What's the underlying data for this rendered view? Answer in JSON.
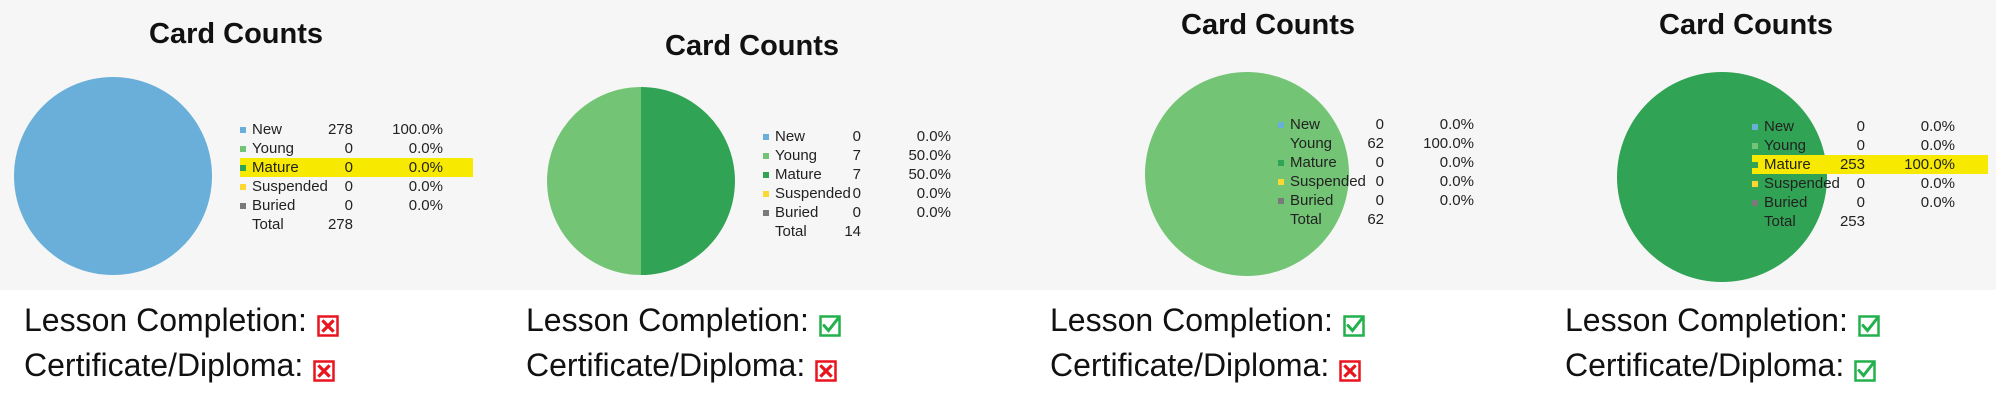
{
  "chart_data": [
    {
      "type": "pie",
      "title": "Card Counts",
      "series": [
        {
          "name": "New",
          "count": 278,
          "percent": "100.0%"
        },
        {
          "name": "Young",
          "count": 0,
          "percent": "0.0%"
        },
        {
          "name": "Mature",
          "count": 0,
          "percent": "0.0%"
        },
        {
          "name": "Suspended",
          "count": 0,
          "percent": "0.0%"
        },
        {
          "name": "Buried",
          "count": 0,
          "percent": "0.0%"
        }
      ],
      "total_label": "Total",
      "total": 278,
      "highlighted": "Mature"
    },
    {
      "type": "pie",
      "title": "Card Counts",
      "series": [
        {
          "name": "New",
          "count": 0,
          "percent": "0.0%"
        },
        {
          "name": "Young",
          "count": 7,
          "percent": "50.0%"
        },
        {
          "name": "Mature",
          "count": 7,
          "percent": "50.0%"
        },
        {
          "name": "Suspended",
          "count": 0,
          "percent": "0.0%"
        },
        {
          "name": "Buried",
          "count": 0,
          "percent": "0.0%"
        }
      ],
      "total_label": "Total",
      "total": 14,
      "highlighted": null
    },
    {
      "type": "pie",
      "title": "Card Counts",
      "series": [
        {
          "name": "New",
          "count": 0,
          "percent": "0.0%"
        },
        {
          "name": "Young",
          "count": 62,
          "percent": "100.0%"
        },
        {
          "name": "Mature",
          "count": 0,
          "percent": "0.0%"
        },
        {
          "name": "Suspended",
          "count": 0,
          "percent": "0.0%"
        },
        {
          "name": "Buried",
          "count": 0,
          "percent": "0.0%"
        }
      ],
      "total_label": "Total",
      "total": 62,
      "highlighted": null
    },
    {
      "type": "pie",
      "title": "Card Counts",
      "series": [
        {
          "name": "New",
          "count": 0,
          "percent": "0.0%"
        },
        {
          "name": "Young",
          "count": 0,
          "percent": "0.0%"
        },
        {
          "name": "Mature",
          "count": 253,
          "percent": "100.0%"
        },
        {
          "name": "Suspended",
          "count": 0,
          "percent": "0.0%"
        },
        {
          "name": "Buried",
          "count": 0,
          "percent": "0.0%"
        }
      ],
      "total_label": "Total",
      "total": 253,
      "highlighted": "Mature"
    }
  ],
  "series_colors": {
    "New": "#6aafd9",
    "Young": "#74c476",
    "Mature": "#31a354",
    "Suspended": "#fdd834",
    "Buried": "#7a7a7a"
  },
  "highlight_color": "#f7ea00",
  "status_labels": {
    "lesson": "Lesson Completion:",
    "certificate": "Certificate/Diploma:"
  },
  "status": [
    {
      "lesson": "cross-icon",
      "certificate": "cross-icon"
    },
    {
      "lesson": "check-icon",
      "certificate": "cross-icon"
    },
    {
      "lesson": "check-icon",
      "certificate": "cross-icon"
    },
    {
      "lesson": "check-icon",
      "certificate": "check-icon"
    }
  ],
  "status_colors": {
    "check-icon": "#22b14c",
    "cross-icon": "#e8141e"
  }
}
